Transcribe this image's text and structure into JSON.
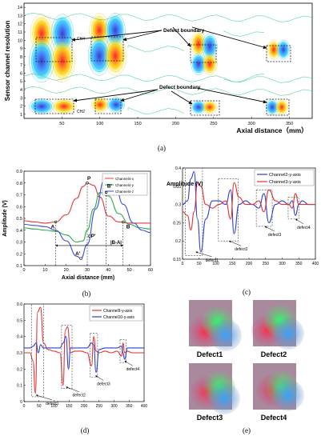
{
  "panel_a": {
    "ylabel": "Sensor channel resolution",
    "xlabel": "Axial distance（mm）",
    "y_ticks": [
      "1",
      "2",
      "3",
      "4",
      "5",
      "6",
      "7",
      "8",
      "9",
      "10",
      "11",
      "12",
      "13",
      "14"
    ],
    "x_ticks": [
      "50",
      "100",
      "150",
      "200",
      "250",
      "300",
      "350"
    ],
    "annotations": {
      "top": "Defect  boundary",
      "bottom": "Defect  boundary",
      "ch4": "CH4",
      "ch2": "CH2"
    },
    "caption": "(a)"
  },
  "panel_b": {
    "ylabel": "Amplitude (V)",
    "xlabel": "Axial distance (mm)",
    "legend": [
      "Channel4-x",
      "Channel4-y",
      "Channel4-z"
    ],
    "points": {
      "P": "P",
      "Bp": "B'",
      "A": "A",
      "B": "B",
      "Ap": "A'",
      "Pp": "P'",
      "BA": "|B-A|"
    },
    "caption": "(b)"
  },
  "panel_c": {
    "ylabel": "Amplitude (V)",
    "legend": [
      "Channel2-y-axis",
      "Channel3-y-axis"
    ],
    "defects": [
      "defect1",
      "defect2",
      "defect3",
      "defect4"
    ],
    "caption": "(c)"
  },
  "panel_d": {
    "legend": [
      "Channel9-y-axis",
      "Channel10-y-axis"
    ],
    "defects": [
      "defect1",
      "defect2",
      "defect3",
      "defect4"
    ],
    "caption": "(d)"
  },
  "panel_e": {
    "labels": [
      "Defect1",
      "Defect2",
      "Defect3",
      "Defect4"
    ],
    "caption": "(e)"
  },
  "chart_data": [
    {
      "type": "line",
      "panel": "b",
      "xlabel": "Axial distance (mm)",
      "ylabel": "Amplitude (V)",
      "xlim": [
        0,
        60
      ],
      "ylim": [
        0.1,
        0.9
      ],
      "x_ticks": [
        0,
        10,
        20,
        30,
        40,
        50,
        60
      ],
      "y_ticks": [
        0.1,
        0.2,
        0.3,
        0.4,
        0.5,
        0.6,
        0.7,
        0.8,
        0.9
      ],
      "series": [
        {
          "name": "Channel4-x",
          "color": "#e8393c",
          "x": [
            0,
            5,
            10,
            15,
            20,
            25,
            28,
            30,
            33,
            36,
            40,
            45,
            50,
            55,
            60
          ],
          "y": [
            0.48,
            0.47,
            0.46,
            0.47,
            0.53,
            0.67,
            0.77,
            0.8,
            0.78,
            0.68,
            0.52,
            0.47,
            0.46,
            0.46,
            0.46
          ]
        },
        {
          "name": "Channel4-y",
          "color": "#2ea84a",
          "x": [
            0,
            5,
            10,
            15,
            20,
            25,
            28,
            30,
            33,
            36,
            40,
            45,
            50,
            55,
            60
          ],
          "y": [
            0.42,
            0.41,
            0.4,
            0.39,
            0.36,
            0.3,
            0.31,
            0.4,
            0.58,
            0.72,
            0.69,
            0.54,
            0.45,
            0.42,
            0.41
          ]
        },
        {
          "name": "Channel4-z",
          "color": "#3a4fd6",
          "x": [
            0,
            5,
            10,
            15,
            20,
            25,
            27,
            30,
            34,
            38,
            40,
            43,
            47,
            52,
            56,
            60
          ],
          "y": [
            0.45,
            0.44,
            0.43,
            0.4,
            0.31,
            0.18,
            0.16,
            0.28,
            0.58,
            0.82,
            0.85,
            0.8,
            0.62,
            0.46,
            0.4,
            0.38
          ]
        }
      ]
    },
    {
      "type": "line",
      "panel": "c",
      "ylabel": "Amplitude (V)",
      "xlim": [
        0,
        400
      ],
      "ylim": [
        0.15,
        0.4
      ],
      "x_ticks": [
        0,
        50,
        100,
        150,
        200,
        250,
        300,
        350,
        400
      ],
      "y_ticks": [
        0.15,
        0.2,
        0.25,
        0.3,
        0.35,
        0.4
      ],
      "series": [
        {
          "name": "Channel2-y-axis",
          "color": "#2b3fd1",
          "x": [
            0,
            15,
            25,
            35,
            45,
            55,
            70,
            90,
            110,
            130,
            145,
            155,
            170,
            190,
            210,
            230,
            245,
            260,
            280,
            300,
            320,
            330,
            340,
            350,
            360,
            380,
            400
          ],
          "y": [
            0.3,
            0.31,
            0.37,
            0.39,
            0.26,
            0.17,
            0.26,
            0.31,
            0.31,
            0.3,
            0.34,
            0.22,
            0.3,
            0.31,
            0.3,
            0.29,
            0.33,
            0.25,
            0.3,
            0.31,
            0.3,
            0.31,
            0.27,
            0.3,
            0.31,
            0.3,
            0.3
          ]
        },
        {
          "name": "Channel3-y-axis",
          "color": "#e23232",
          "x": [
            0,
            15,
            25,
            35,
            45,
            55,
            70,
            90,
            110,
            130,
            145,
            155,
            170,
            190,
            210,
            230,
            245,
            260,
            280,
            300,
            320,
            330,
            340,
            350,
            360,
            380,
            400
          ],
          "y": [
            0.28,
            0.27,
            0.23,
            0.28,
            0.36,
            0.35,
            0.3,
            0.29,
            0.3,
            0.31,
            0.26,
            0.36,
            0.32,
            0.3,
            0.3,
            0.31,
            0.28,
            0.34,
            0.31,
            0.3,
            0.3,
            0.29,
            0.33,
            0.3,
            0.3,
            0.3,
            0.3
          ]
        }
      ]
    },
    {
      "type": "line",
      "panel": "d",
      "xlim": [
        0,
        400
      ],
      "ylim": [
        0,
        0.6
      ],
      "x_ticks": [
        0,
        50,
        100,
        150,
        200,
        250,
        300,
        350,
        400
      ],
      "y_ticks": [
        0,
        0.1,
        0.2,
        0.3,
        0.4,
        0.5,
        0.6
      ],
      "series": [
        {
          "name": "Channel9-y-axis",
          "color": "#e23232",
          "x": [
            0,
            20,
            30,
            38,
            45,
            55,
            65,
            80,
            100,
            120,
            130,
            138,
            145,
            155,
            170,
            190,
            210,
            225,
            232,
            240,
            250,
            270,
            290,
            310,
            325,
            330,
            335,
            345,
            360,
            380,
            400
          ],
          "y": [
            0.3,
            0.3,
            0.25,
            0.05,
            0.55,
            0.58,
            0.36,
            0.32,
            0.31,
            0.3,
            0.1,
            0.44,
            0.46,
            0.3,
            0.31,
            0.31,
            0.3,
            0.22,
            0.4,
            0.31,
            0.3,
            0.31,
            0.3,
            0.31,
            0.28,
            0.36,
            0.3,
            0.31,
            0.3,
            0.3,
            0.3
          ]
        },
        {
          "name": "Channel10-y-axis",
          "color": "#2b3fd1",
          "x": [
            0,
            20,
            30,
            40,
            48,
            55,
            65,
            80,
            100,
            120,
            130,
            140,
            148,
            155,
            170,
            190,
            210,
            225,
            232,
            240,
            250,
            270,
            290,
            310,
            325,
            330,
            335,
            345,
            360,
            380,
            400
          ],
          "y": [
            0.33,
            0.33,
            0.34,
            0.36,
            0.3,
            0.35,
            0.33,
            0.33,
            0.33,
            0.33,
            0.36,
            0.4,
            0.2,
            0.33,
            0.33,
            0.33,
            0.33,
            0.36,
            0.35,
            0.18,
            0.32,
            0.33,
            0.33,
            0.33,
            0.34,
            0.3,
            0.26,
            0.33,
            0.33,
            0.33,
            0.33
          ]
        }
      ]
    }
  ]
}
